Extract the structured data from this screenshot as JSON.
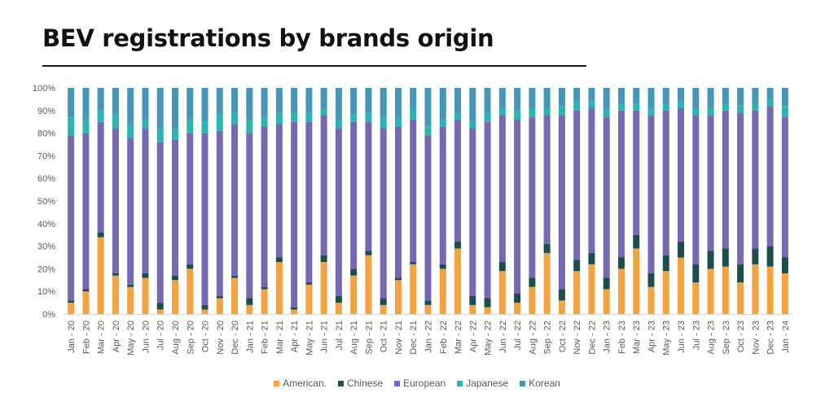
{
  "title": "BEV registrations by brands origin",
  "chart_data": {
    "type": "bar",
    "stacked": true,
    "normalized": true,
    "title": "BEV registrations by brands origin",
    "ylim": [
      0,
      100
    ],
    "yticks": [
      "0%",
      "10%",
      "20%",
      "30%",
      "40%",
      "50%",
      "60%",
      "70%",
      "80%",
      "90%",
      "100%"
    ],
    "grid": false,
    "legend_position": "bottom",
    "categories": [
      "Jan - 20",
      "Feb - 20",
      "Mar - 20",
      "Apr - 20",
      "May - 20",
      "Jun - 20",
      "Jul - 20",
      "Aug - 20",
      "Sep - 20",
      "Oct - 20",
      "Nov - 20",
      "Dec - 20",
      "Jan - 21",
      "Feb - 21",
      "Mar - 21",
      "Apr - 21",
      "May - 21",
      "Jun - 21",
      "Jul - 21",
      "Aug - 21",
      "Sep - 21",
      "Oct - 21",
      "Nov - 21",
      "Dec - 21",
      "Jan - 22",
      "Feb - 22",
      "Mar - 22",
      "Apr - 22",
      "May - 22",
      "Jun - 22",
      "Jul - 22",
      "Aug - 22",
      "Sep - 22",
      "Oct - 22",
      "Nov - 22",
      "Dec - 22",
      "Jan - 23",
      "Feb - 23",
      "Mar - 23",
      "Apr - 23",
      "May - 23",
      "Jun - 23",
      "Jul - 23",
      "Aug - 23",
      "Sep - 23",
      "Oct - 23",
      "Nov - 23",
      "Dec - 23",
      "Jan - 24"
    ],
    "series": [
      {
        "name": "American.",
        "color": "#f4a340",
        "values": [
          5,
          10,
          34,
          17,
          12,
          16,
          2,
          15,
          20,
          2,
          7,
          16,
          4,
          11,
          23,
          2,
          13,
          23,
          5,
          17,
          26,
          4,
          15,
          22,
          4,
          20,
          29,
          4,
          3,
          19,
          5,
          12,
          27,
          6,
          19,
          22,
          11,
          20,
          29,
          12,
          19,
          25,
          14,
          20,
          21,
          14,
          22,
          21,
          18
        ]
      },
      {
        "name": "Chinese",
        "color": "#1d4e4b",
        "values": [
          1,
          1,
          2,
          1,
          1,
          2,
          3,
          2,
          2,
          2,
          1,
          1,
          3,
          1,
          2,
          1,
          1,
          3,
          3,
          3,
          2,
          3,
          1,
          1,
          2,
          2,
          3,
          4,
          4,
          4,
          4,
          4,
          4,
          5,
          5,
          5,
          5,
          5,
          6,
          6,
          7,
          7,
          8,
          8,
          8,
          8,
          7,
          9,
          7
        ]
      },
      {
        "name": "European",
        "color": "#7569b3",
        "values": [
          73,
          69,
          49,
          64,
          65,
          64,
          71,
          60,
          58,
          76,
          73,
          67,
          73,
          71,
          59,
          82,
          71,
          62,
          74,
          65,
          57,
          75,
          67,
          63,
          73,
          61,
          54,
          74,
          78,
          65,
          77,
          71,
          57,
          77,
          66,
          64,
          71,
          65,
          55,
          70,
          64,
          59,
          66,
          60,
          61,
          67,
          61,
          62,
          62
        ]
      },
      {
        "name": "Japanese",
        "color": "#2cb5ae",
        "values": [
          8,
          6,
          5,
          6,
          6,
          4,
          6,
          5,
          6,
          5,
          7,
          5,
          6,
          4,
          5,
          4,
          4,
          3,
          4,
          3,
          4,
          5,
          4,
          5,
          4,
          3,
          3,
          3,
          4,
          3,
          4,
          4,
          3,
          4,
          4,
          3,
          4,
          3,
          3,
          3,
          3,
          3,
          3,
          3,
          3,
          3,
          3,
          3,
          5
        ]
      },
      {
        "name": "Korean",
        "color": "#4596b8",
        "values": [
          13,
          14,
          10,
          12,
          16,
          14,
          18,
          18,
          14,
          15,
          12,
          11,
          14,
          13,
          11,
          11,
          11,
          9,
          14,
          12,
          11,
          13,
          13,
          9,
          17,
          14,
          11,
          15,
          11,
          9,
          10,
          9,
          9,
          8,
          6,
          6,
          9,
          7,
          7,
          9,
          7,
          6,
          9,
          9,
          7,
          8,
          7,
          5,
          8
        ]
      }
    ]
  }
}
